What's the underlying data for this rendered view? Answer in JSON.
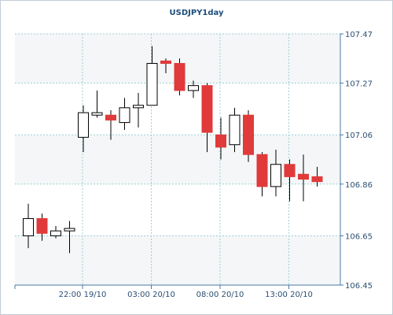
{
  "chart_data": {
    "type": "candlestick",
    "title": "USDJPY1day",
    "xlabel": "",
    "ylabel": "",
    "ylim": [
      106.45,
      107.47
    ],
    "grid": true,
    "y_ticks": [
      "107.47",
      "107.27",
      "107.06",
      "106.86",
      "106.65",
      "106.45"
    ],
    "x_ticks": [
      "22:00 19/10",
      "03:00 20/10",
      "08:00 20/10",
      "13:00 20/10"
    ],
    "colors": {
      "up": "#ffffff",
      "down": "#e03a3a",
      "outline": "#000000",
      "grid": "#9fd0d4",
      "axis": "#4a7aa8",
      "band": "#f4f6f8"
    },
    "candles": [
      {
        "open": 106.65,
        "high": 106.78,
        "low": 106.6,
        "close": 106.72
      },
      {
        "open": 106.72,
        "high": 106.74,
        "low": 106.63,
        "close": 106.66
      },
      {
        "open": 106.65,
        "high": 106.69,
        "low": 106.64,
        "close": 106.67
      },
      {
        "open": 106.67,
        "high": 106.71,
        "low": 106.58,
        "close": 106.68
      },
      {
        "open": 107.05,
        "high": 107.18,
        "low": 106.99,
        "close": 107.15
      },
      {
        "open": 107.14,
        "high": 107.24,
        "low": 107.13,
        "close": 107.15
      },
      {
        "open": 107.14,
        "high": 107.16,
        "low": 107.04,
        "close": 107.12
      },
      {
        "open": 107.11,
        "high": 107.21,
        "low": 107.08,
        "close": 107.17
      },
      {
        "open": 107.17,
        "high": 107.23,
        "low": 107.09,
        "close": 107.18
      },
      {
        "open": 107.18,
        "high": 107.42,
        "low": 107.18,
        "close": 107.35
      },
      {
        "open": 107.36,
        "high": 107.37,
        "low": 107.31,
        "close": 107.35
      },
      {
        "open": 107.35,
        "high": 107.37,
        "low": 107.22,
        "close": 107.24
      },
      {
        "open": 107.24,
        "high": 107.28,
        "low": 107.21,
        "close": 107.26
      },
      {
        "open": 107.26,
        "high": 107.27,
        "low": 106.99,
        "close": 107.07
      },
      {
        "open": 107.06,
        "high": 107.13,
        "low": 106.96,
        "close": 107.01
      },
      {
        "open": 107.02,
        "high": 107.17,
        "low": 106.99,
        "close": 107.14
      },
      {
        "open": 107.14,
        "high": 107.16,
        "low": 106.95,
        "close": 106.98
      },
      {
        "open": 106.98,
        "high": 106.99,
        "low": 106.81,
        "close": 106.85
      },
      {
        "open": 106.85,
        "high": 107.0,
        "low": 106.81,
        "close": 106.94
      },
      {
        "open": 106.94,
        "high": 106.96,
        "low": 106.79,
        "close": 106.89
      },
      {
        "open": 106.9,
        "high": 106.98,
        "low": 106.79,
        "close": 106.88
      },
      {
        "open": 106.89,
        "high": 106.93,
        "low": 106.85,
        "close": 106.87
      }
    ]
  }
}
